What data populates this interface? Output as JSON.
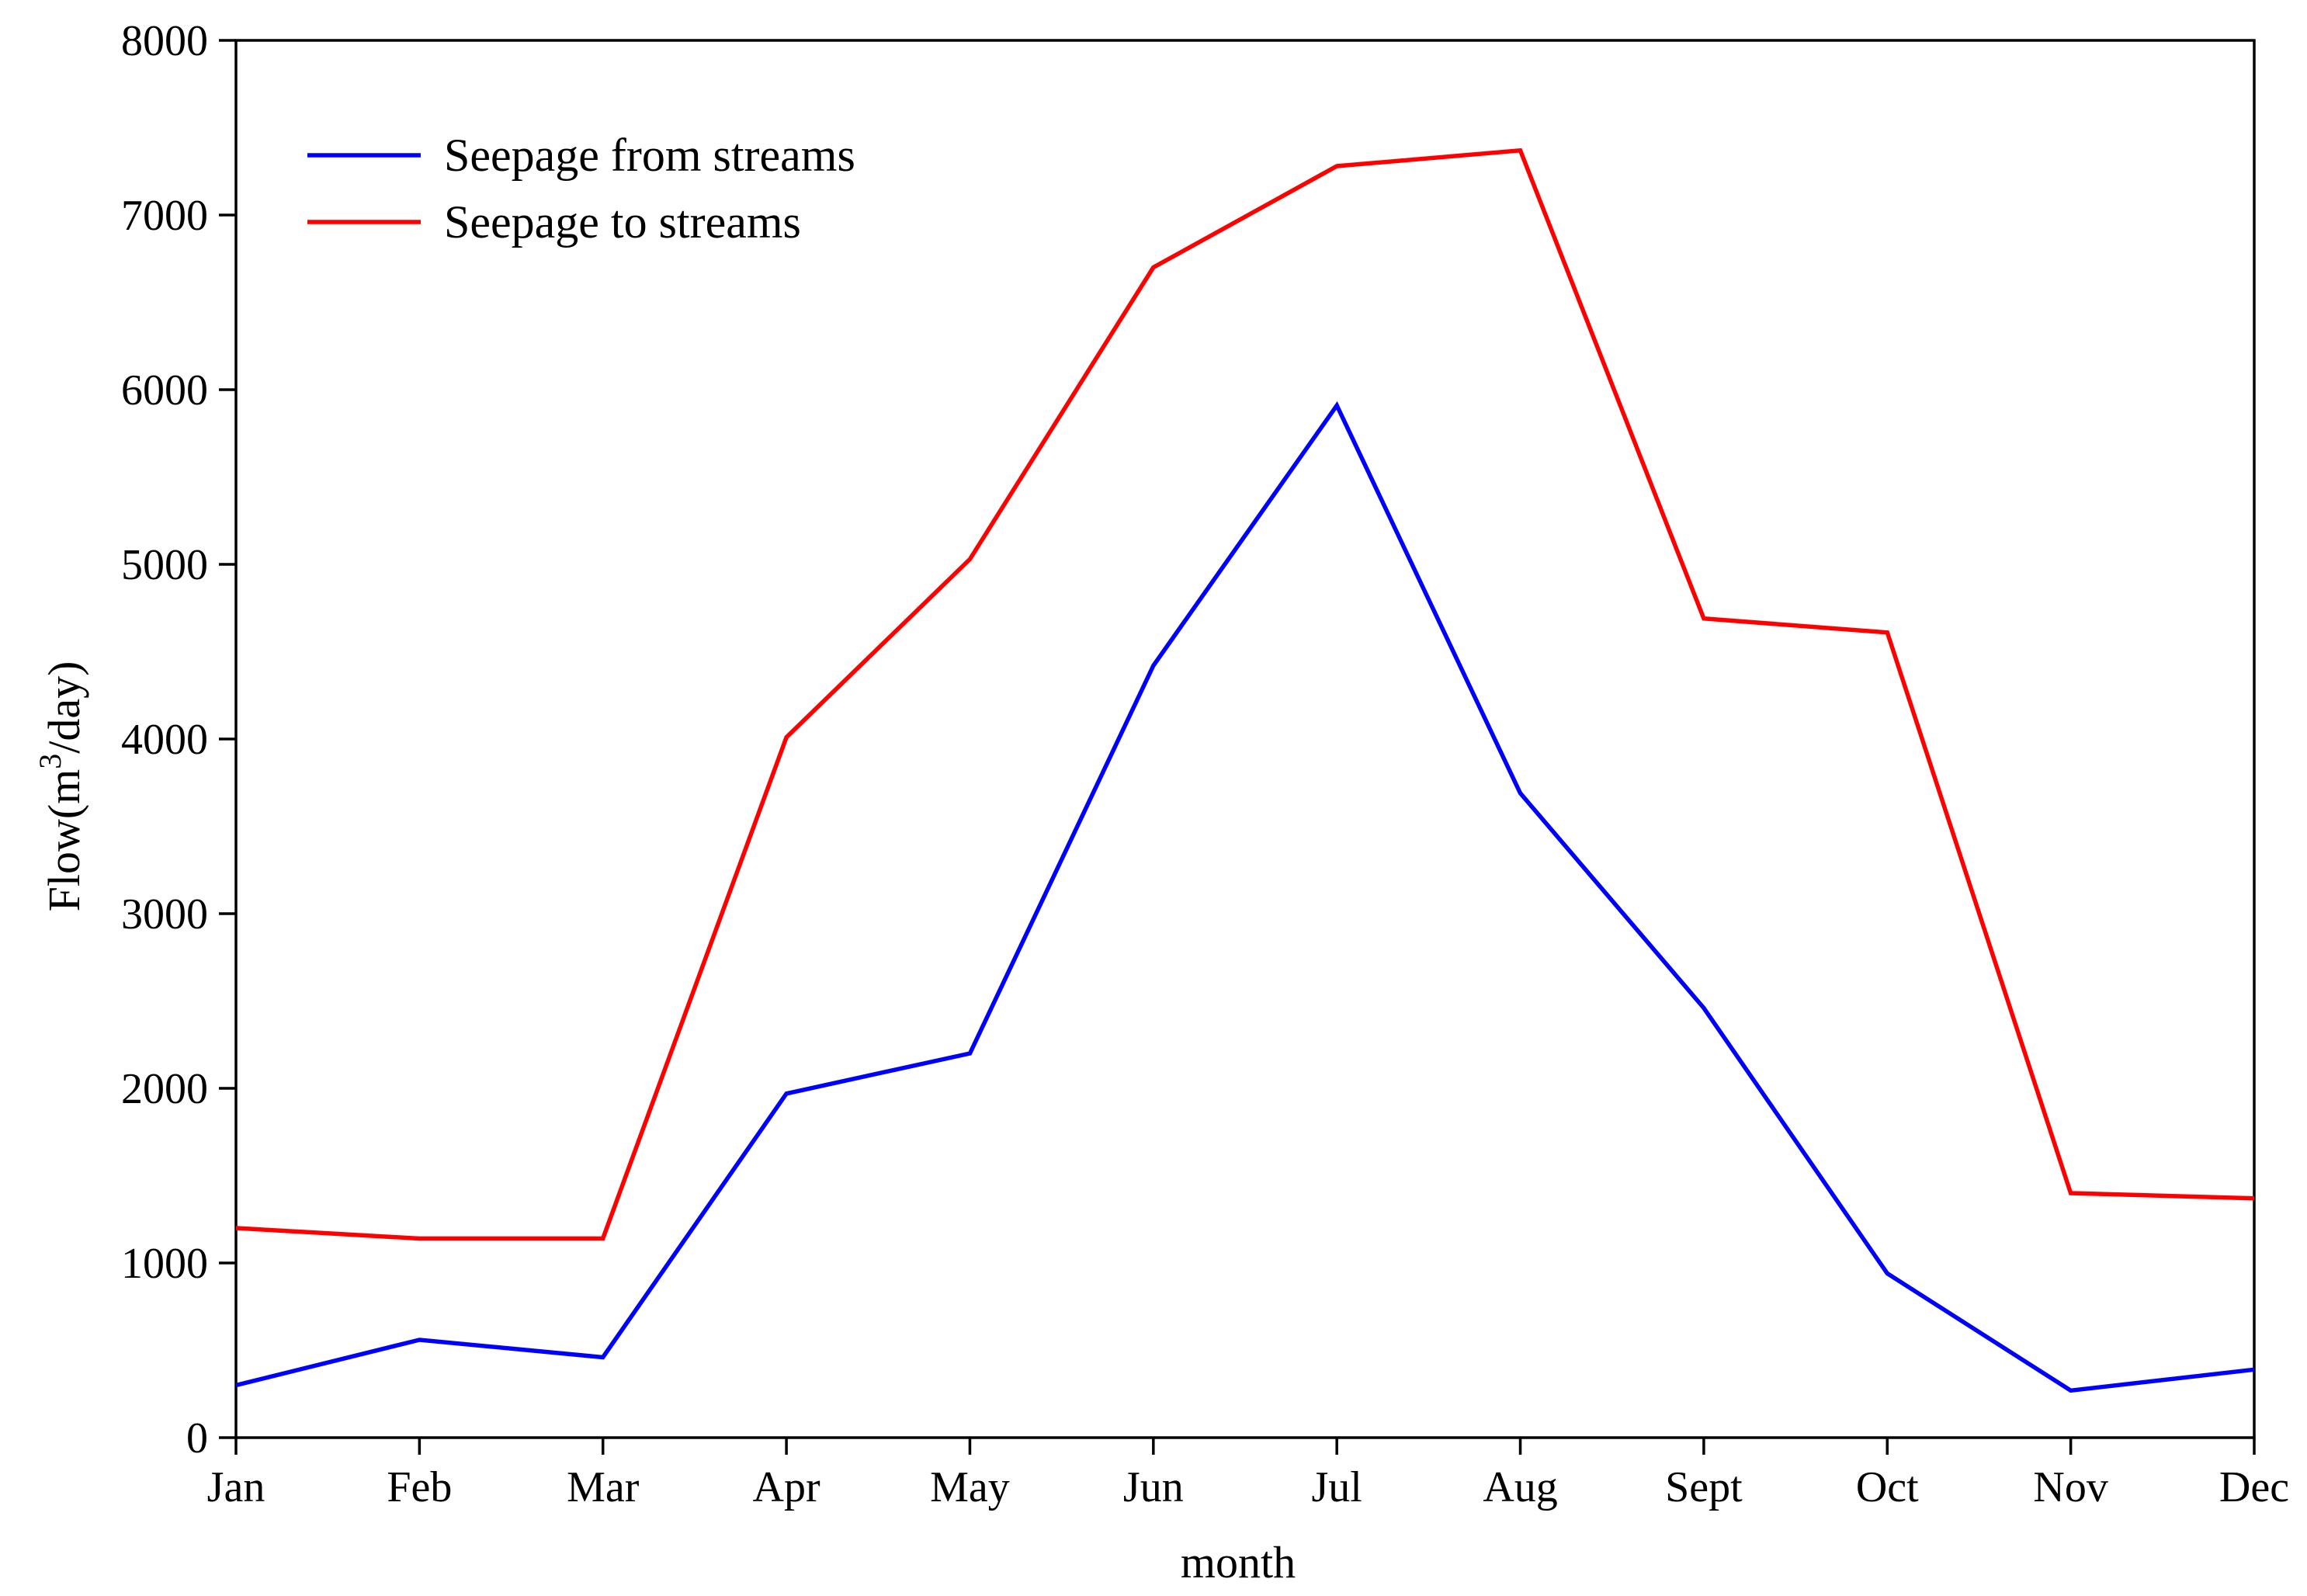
{
  "chart_data": {
    "type": "line",
    "title": "",
    "xlabel": "month",
    "ylabel_prefix": "Flow(m",
    "ylabel_sup": "3",
    "ylabel_suffix": "/day)",
    "categories": [
      "Jan",
      "Feb",
      "Mar",
      "Apr",
      "May",
      "Jun",
      "Jul",
      "Aug",
      "Sept",
      "Oct",
      "Nov",
      "Dec"
    ],
    "ylim": [
      0,
      8000
    ],
    "yticks": [
      0,
      1000,
      2000,
      3000,
      4000,
      5000,
      6000,
      7000,
      8000
    ],
    "ytick_labels": [
      "0",
      "1000",
      "2000",
      "3000",
      "4000",
      "5000",
      "6000",
      "7000",
      "8000"
    ],
    "grid": false,
    "legend_position": "top-left",
    "series": [
      {
        "name": "Seepage from streams",
        "color": "#0000ff",
        "values": [
          300,
          560,
          460,
          1970,
          2200,
          4420,
          5910,
          3690,
          2460,
          940,
          270,
          390
        ]
      },
      {
        "name": "Seepage to streams",
        "color": "#ff0000",
        "values": [
          1200,
          1140,
          1140,
          4010,
          5030,
          6700,
          7280,
          7370,
          4690,
          4610,
          1400,
          1370
        ]
      }
    ]
  }
}
